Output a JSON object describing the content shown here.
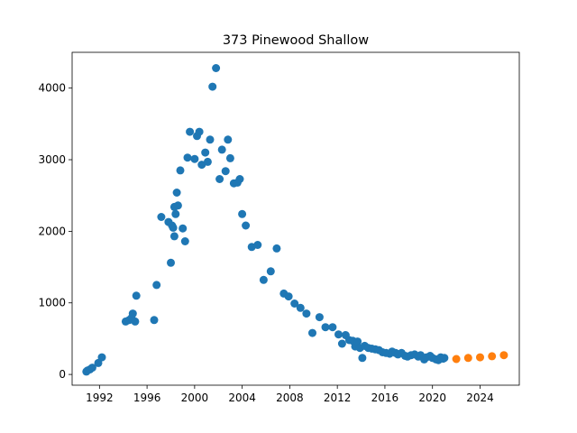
{
  "chart_data": {
    "type": "scatter",
    "title": "373 Pinewood Shallow",
    "xlabel": "",
    "ylabel": "",
    "xlim": [
      1989.7,
      2027.3
    ],
    "ylim": [
      -150,
      4500
    ],
    "x_ticks": [
      1992,
      1996,
      2000,
      2004,
      2008,
      2012,
      2016,
      2020,
      2024
    ],
    "y_ticks": [
      0,
      1000,
      2000,
      3000,
      4000
    ],
    "grid": false,
    "legend": "none",
    "series": [
      {
        "color": "#1f77b4",
        "points": [
          [
            1990.9,
            40
          ],
          [
            1991.0,
            55
          ],
          [
            1991.2,
            70
          ],
          [
            1991.4,
            95
          ],
          [
            1991.9,
            160
          ],
          [
            1992.2,
            240
          ],
          [
            1994.2,
            740
          ],
          [
            1994.5,
            760
          ],
          [
            1994.7,
            790
          ],
          [
            1994.8,
            850
          ],
          [
            1995.0,
            740
          ],
          [
            1995.1,
            1100
          ],
          [
            1996.6,
            760
          ],
          [
            1996.8,
            1250
          ],
          [
            1997.2,
            2200
          ],
          [
            1997.8,
            2130
          ],
          [
            1998.0,
            1560
          ],
          [
            1998.1,
            2080
          ],
          [
            1998.2,
            2050
          ],
          [
            1998.3,
            2340
          ],
          [
            1998.3,
            1930
          ],
          [
            1998.4,
            2240
          ],
          [
            1998.5,
            2540
          ],
          [
            1998.6,
            2360
          ],
          [
            1998.8,
            2850
          ],
          [
            1999.0,
            2040
          ],
          [
            1999.2,
            1860
          ],
          [
            1999.4,
            3030
          ],
          [
            1999.6,
            3390
          ],
          [
            2000.0,
            3010
          ],
          [
            2000.2,
            3330
          ],
          [
            2000.4,
            3390
          ],
          [
            2000.6,
            2930
          ],
          [
            2000.9,
            3100
          ],
          [
            2001.1,
            2970
          ],
          [
            2001.3,
            3280
          ],
          [
            2001.5,
            4020
          ],
          [
            2001.8,
            4280
          ],
          [
            2002.1,
            2730
          ],
          [
            2002.3,
            3140
          ],
          [
            2002.6,
            2840
          ],
          [
            2002.8,
            3280
          ],
          [
            2003.0,
            3020
          ],
          [
            2003.3,
            2670
          ],
          [
            2003.6,
            2680
          ],
          [
            2003.8,
            2730
          ],
          [
            2004.0,
            2240
          ],
          [
            2004.3,
            2080
          ],
          [
            2004.8,
            1780
          ],
          [
            2005.3,
            1810
          ],
          [
            2005.8,
            1320
          ],
          [
            2006.4,
            1440
          ],
          [
            2006.9,
            1760
          ],
          [
            2007.5,
            1130
          ],
          [
            2007.9,
            1090
          ],
          [
            2008.4,
            990
          ],
          [
            2008.9,
            930
          ],
          [
            2009.4,
            850
          ],
          [
            2009.9,
            580
          ],
          [
            2010.5,
            800
          ],
          [
            2011.0,
            660
          ],
          [
            2011.6,
            660
          ],
          [
            2012.1,
            560
          ],
          [
            2012.4,
            430
          ],
          [
            2012.7,
            550
          ],
          [
            2013.0,
            480
          ],
          [
            2013.3,
            470
          ],
          [
            2013.5,
            390
          ],
          [
            2013.7,
            460
          ],
          [
            2013.9,
            370
          ],
          [
            2014.1,
            230
          ],
          [
            2014.3,
            400
          ],
          [
            2014.6,
            370
          ],
          [
            2014.9,
            360
          ],
          [
            2015.2,
            350
          ],
          [
            2015.5,
            340
          ],
          [
            2015.8,
            310
          ],
          [
            2016.1,
            300
          ],
          [
            2016.4,
            290
          ],
          [
            2016.6,
            320
          ],
          [
            2016.9,
            300
          ],
          [
            2017.1,
            280
          ],
          [
            2017.4,
            300
          ],
          [
            2017.7,
            260
          ],
          [
            2017.9,
            250
          ],
          [
            2018.2,
            270
          ],
          [
            2018.5,
            280
          ],
          [
            2018.8,
            250
          ],
          [
            2019.0,
            270
          ],
          [
            2019.3,
            210
          ],
          [
            2019.5,
            240
          ],
          [
            2019.8,
            260
          ],
          [
            2020.0,
            230
          ],
          [
            2020.3,
            210
          ],
          [
            2020.5,
            200
          ],
          [
            2020.7,
            240
          ],
          [
            2020.9,
            220
          ],
          [
            2021.0,
            230
          ]
        ]
      },
      {
        "color": "#ff7f0e",
        "points": [
          [
            2022.0,
            215
          ],
          [
            2023.0,
            230
          ],
          [
            2024.0,
            240
          ],
          [
            2025.0,
            255
          ],
          [
            2026.0,
            270
          ]
        ]
      }
    ]
  }
}
